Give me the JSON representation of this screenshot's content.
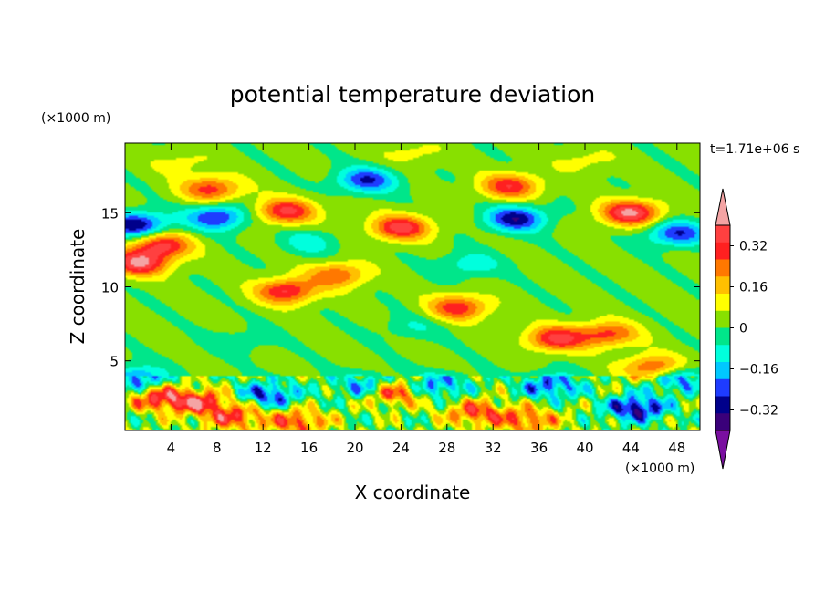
{
  "chart_data": {
    "type": "heatmap",
    "title": "potential temperature deviation",
    "xlabel": "X coordinate",
    "ylabel": "Z coordinate",
    "x_unit": "(×1000 m)",
    "y_unit": "(×1000 m)",
    "time_label": "t=1.71e+06 s",
    "xlim": [
      0,
      50
    ],
    "ylim": [
      0.3,
      19.7
    ],
    "x_ticks": [
      4,
      8,
      12,
      16,
      20,
      24,
      28,
      32,
      36,
      40,
      44,
      48
    ],
    "y_ticks": [
      5,
      10,
      15
    ],
    "colorbar": {
      "levels": [
        -0.48,
        -0.4,
        -0.32,
        -0.24,
        -0.16,
        -0.08,
        0,
        0.08,
        0.16,
        0.24,
        0.32,
        0.4,
        0.48
      ],
      "colors": [
        "#7a0fa0",
        "#3a007a",
        "#00008b",
        "#1e3cff",
        "#00c8ff",
        "#00ffdd",
        "#00e68a",
        "#88e000",
        "#ffff00",
        "#ffc000",
        "#ff7800",
        "#ff2020",
        "#ff4040",
        "#f4a4a4"
      ],
      "tick_labels": [
        "0.32",
        "0.16",
        "0",
        "−0.16",
        "−0.32"
      ],
      "tick_values": [
        0.32,
        0.16,
        0,
        -0.16,
        -0.32
      ]
    },
    "field_features": [
      {
        "x": 7.5,
        "z": 16.6,
        "v": 0.34
      },
      {
        "x": 14,
        "z": 15.1,
        "v": 0.4
      },
      {
        "x": 24,
        "z": 14,
        "v": 0.42
      },
      {
        "x": 33.5,
        "z": 16.8,
        "v": 0.36
      },
      {
        "x": 44,
        "z": 15,
        "v": 0.48
      },
      {
        "x": 3.2,
        "z": 12.8,
        "v": 0.4
      },
      {
        "x": 1.2,
        "z": 11.6,
        "v": 0.45
      },
      {
        "x": 14,
        "z": 9.7,
        "v": 0.4
      },
      {
        "x": 18.5,
        "z": 10.8,
        "v": 0.3
      },
      {
        "x": 29,
        "z": 8.6,
        "v": 0.36
      },
      {
        "x": 37.5,
        "z": 6.5,
        "v": 0.4
      },
      {
        "x": 42,
        "z": 6.8,
        "v": 0.32
      },
      {
        "x": 46,
        "z": 4.5,
        "v": 0.36
      },
      {
        "x": 23.5,
        "z": 2.9,
        "v": 0.4
      },
      {
        "x": 30.5,
        "z": 1.5,
        "v": 0.32
      },
      {
        "x": 9.5,
        "z": 1.2,
        "v": 0.32
      },
      {
        "x": 15,
        "z": 0.9,
        "v": 0.32
      },
      {
        "x": 35,
        "z": 1.0,
        "v": 0.3
      },
      {
        "x": 3,
        "z": 2.5,
        "v": 0.36
      },
      {
        "x": 6.5,
        "z": 2.2,
        "v": 0.36
      },
      {
        "x": 1,
        "z": 14.2,
        "v": -0.42
      },
      {
        "x": 8,
        "z": 14.7,
        "v": -0.36
      },
      {
        "x": 21,
        "z": 17.2,
        "v": -0.34
      },
      {
        "x": 34,
        "z": 14.6,
        "v": -0.4
      },
      {
        "x": 48,
        "z": 13.6,
        "v": -0.34
      },
      {
        "x": 16,
        "z": 13,
        "v": -0.14
      },
      {
        "x": 30,
        "z": 11.5,
        "v": -0.16
      },
      {
        "x": 44.5,
        "z": 1.8,
        "v": -0.42
      },
      {
        "x": 12.5,
        "z": 2.7,
        "v": -0.32
      },
      {
        "x": 21,
        "z": 3.3,
        "v": -0.28
      },
      {
        "x": 27,
        "z": 3.3,
        "v": -0.3
      },
      {
        "x": 37,
        "z": 3.3,
        "v": -0.3
      },
      {
        "x": 1,
        "z": 3.8,
        "v": -0.3
      },
      {
        "x": 48,
        "z": 3.8,
        "v": -0.3
      },
      {
        "x": 25,
        "z": 7.3,
        "v": -0.1
      },
      {
        "x": 10,
        "z": 6.3,
        "v": -0.08
      },
      {
        "x": 5,
        "z": 18.4,
        "v": 0.1
      },
      {
        "x": 25,
        "z": 19,
        "v": 0.1
      },
      {
        "x": 40,
        "z": 18.5,
        "v": 0.1
      }
    ]
  }
}
